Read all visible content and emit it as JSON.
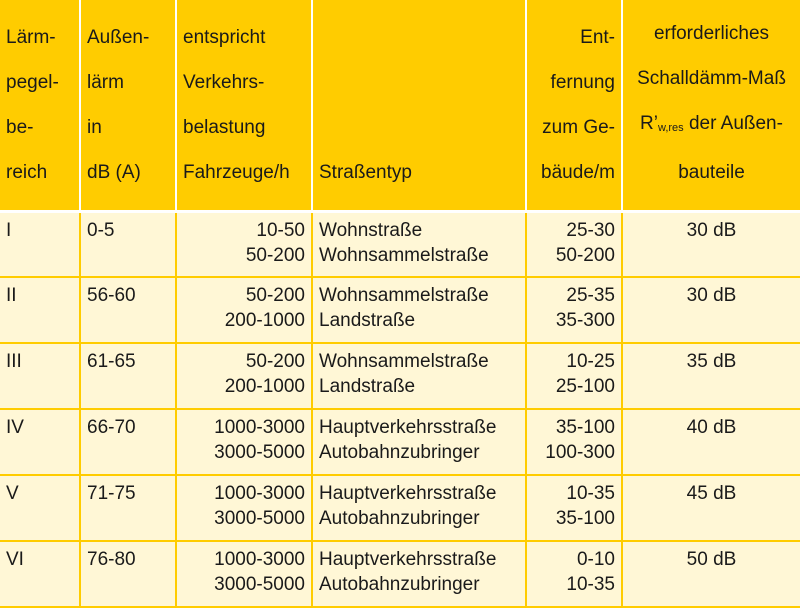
{
  "headers": {
    "col1": [
      "Lärm-",
      "pegel-",
      "be-",
      "reich"
    ],
    "col2": [
      "Außen-",
      "lärm",
      "in",
      "dB (A)"
    ],
    "col3": [
      "entspricht",
      "Verkehrs-",
      "belastung",
      "Fahrzeuge/h"
    ],
    "col4": [
      "Straßentyp"
    ],
    "col5": [
      "Ent-",
      "fernung",
      "zum Ge-",
      "bäude/m"
    ],
    "col6": {
      "line1": "erforderliches",
      "line2": "Schalldämm-Maß",
      "line3_pre": "R’",
      "line3_sub": "w,res",
      "line3_post": " der Außen-",
      "line4": "bauteile"
    }
  },
  "rows": [
    {
      "bereich": "I",
      "laerm": "0-5",
      "belastung": [
        "10-50",
        "50-200"
      ],
      "strassentyp": [
        "Wohnstraße",
        "Wohnsammelstraße"
      ],
      "entfernung": [
        "25-30",
        "50-200"
      ],
      "schalldaemm": "30 dB"
    },
    {
      "bereich": "II",
      "laerm": "56-60",
      "belastung": [
        "50-200",
        "200-1000"
      ],
      "strassentyp": [
        "Wohnsammelstraße",
        "Landstraße"
      ],
      "entfernung": [
        "25-35",
        "35-300"
      ],
      "schalldaemm": "30 dB"
    },
    {
      "bereich": "III",
      "laerm": "61-65",
      "belastung": [
        "50-200",
        "200-1000"
      ],
      "strassentyp": [
        "Wohnsammelstraße",
        "Landstraße"
      ],
      "entfernung": [
        "10-25",
        "25-100"
      ],
      "schalldaemm": "35 dB"
    },
    {
      "bereich": "IV",
      "laerm": "66-70",
      "belastung": [
        "1000-3000",
        "3000-5000"
      ],
      "strassentyp": [
        "Hauptverkehrsstraße",
        "Autobahnzubringer"
      ],
      "entfernung": [
        "35-100",
        "100-300"
      ],
      "schalldaemm": "40 dB"
    },
    {
      "bereich": "V",
      "laerm": "71-75",
      "belastung": [
        "1000-3000",
        "3000-5000"
      ],
      "strassentyp": [
        "Hauptverkehrsstraße",
        "Autobahnzubringer"
      ],
      "entfernung": [
        "10-35",
        "35-100"
      ],
      "schalldaemm": "45 dB"
    },
    {
      "bereich": "VI",
      "laerm": "76-80",
      "belastung": [
        "1000-3000",
        "3000-5000"
      ],
      "strassentyp": [
        "Hauptverkehrsstraße",
        "Autobahnzubringer"
      ],
      "entfernung": [
        "0-10",
        "10-35"
      ],
      "schalldaemm": "50 dB"
    }
  ],
  "colors": {
    "header_bg": "#ffcc00",
    "body_bg": "#fff7d6",
    "grid": "#ffcc00",
    "text": "#1a1a1a"
  }
}
